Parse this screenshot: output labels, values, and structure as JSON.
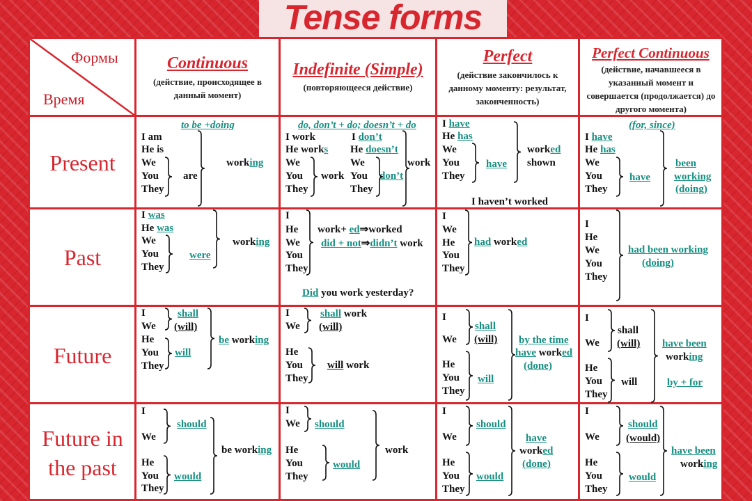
{
  "title": "Tense forms",
  "corner": {
    "forms": "Формы",
    "time": "Время"
  },
  "columns": [
    {
      "title": "Continuous",
      "subtitle": "(действие, происходящее в данный момент)"
    },
    {
      "title": "Indefinite (Simple)",
      "subtitle": "(повторяющееся действие)"
    },
    {
      "title": "Perfect",
      "subtitle": "(действие закончилось к данному моменту: результат, законченность)"
    },
    {
      "title": "Perfect Continuous",
      "subtitle": "(действие, начавшееся в указанный момент и совершается (продолжается) до другого момента)"
    }
  ],
  "rows": [
    {
      "label": "Present"
    },
    {
      "label": "Past"
    },
    {
      "label": "Future"
    },
    {
      "label": "Future in",
      "label2": "the past"
    }
  ],
  "colors": {
    "accent": "#d8262f",
    "highlight": "#178f82"
  },
  "cells": {
    "present_continuous": [
      [
        {
          "hi": "to be +doing"
        }
      ],
      [
        "I am"
      ],
      [
        "He is"
      ],
      [
        "We"
      ],
      [
        "You"
      ],
      [
        "They"
      ],
      [
        "are"
      ],
      [
        "work",
        {
          "hl": "ing"
        }
      ]
    ],
    "present_indefinite": [
      [
        {
          "hi": "do, don’t + do; doesn’t + do"
        }
      ],
      [
        "I work"
      ],
      [
        "He work",
        {
          "hl": "s"
        }
      ],
      [
        "We"
      ],
      [
        "You"
      ],
      [
        "They"
      ],
      [
        "work"
      ],
      [
        "I ",
        {
          "hl": "don’t"
        }
      ],
      [
        "He ",
        {
          "hl": "doesn’t"
        }
      ],
      [
        "We"
      ],
      [
        "You"
      ],
      [
        "They"
      ],
      [
        {
          "hl": "don’t"
        }
      ],
      [
        "work"
      ]
    ],
    "present_perfect": [
      [
        "I ",
        {
          "hl": "have"
        }
      ],
      [
        "He ",
        {
          "hl": "has"
        }
      ],
      [
        "We"
      ],
      [
        "You"
      ],
      [
        "They"
      ],
      [
        {
          "hl": "have"
        }
      ],
      [
        "work",
        {
          "hl": "ed"
        }
      ],
      [
        "shown"
      ],
      [
        "I haven’t worked"
      ]
    ],
    "present_perfect_continuous": [
      [
        {
          "hi": "(for, since)"
        }
      ],
      [
        "I ",
        {
          "hl": "have"
        }
      ],
      [
        "He ",
        {
          "hl": "has"
        }
      ],
      [
        "We"
      ],
      [
        "You"
      ],
      [
        "They"
      ],
      [
        {
          "hl": "have"
        }
      ],
      [
        {
          "hl": "been"
        }
      ],
      [
        {
          "hl": "working"
        }
      ],
      [
        {
          "hl": "(doing)"
        }
      ]
    ],
    "past_continuous": [
      [
        "I ",
        {
          "hl": "was"
        }
      ],
      [
        "He ",
        {
          "hl": "was"
        }
      ],
      [
        "We"
      ],
      [
        "You"
      ],
      [
        "They"
      ],
      [
        {
          "hl": "were"
        }
      ],
      [
        "work",
        {
          "hl": "ing"
        }
      ]
    ],
    "past_indefinite": [
      [
        "I"
      ],
      [
        "He"
      ],
      [
        "We"
      ],
      [
        "You"
      ],
      [
        "They"
      ],
      [
        "work+ ",
        {
          "hl": "ed"
        },
        "⇒worked"
      ],
      [
        {
          "hl": "did + not"
        },
        "⇒",
        {
          "hl": "didn’t"
        },
        " work"
      ],
      [
        {
          "hl": "Did"
        },
        " you work yesterday?"
      ]
    ],
    "past_perfect": [
      [
        "I"
      ],
      [
        "We"
      ],
      [
        "He"
      ],
      [
        "You"
      ],
      [
        "They"
      ],
      [
        {
          "hl": "had"
        },
        " work",
        {
          "hl": "ed"
        }
      ]
    ],
    "past_perfect_continuous": [
      [
        "I"
      ],
      [
        "He"
      ],
      [
        "We"
      ],
      [
        "You"
      ],
      [
        "They"
      ],
      [
        {
          "hl": "had been working"
        }
      ],
      [
        {
          "hl": "(doing)"
        }
      ]
    ],
    "future_continuous": [
      [
        "I"
      ],
      [
        "We"
      ],
      [
        "He"
      ],
      [
        "You"
      ],
      [
        "They"
      ],
      [
        {
          "hl": "shall"
        }
      ],
      [
        {
          "u": "(will)"
        }
      ],
      [
        {
          "hl": "will"
        }
      ],
      [
        {
          "hl": "be"
        },
        " work",
        {
          "hl": "ing"
        }
      ]
    ],
    "future_indefinite": [
      [
        "I"
      ],
      [
        "We"
      ],
      [
        {
          "hl": "shall"
        },
        " work"
      ],
      [
        {
          "u": "(will)"
        }
      ],
      [
        "He"
      ],
      [
        "You"
      ],
      [
        "They"
      ],
      [
        {
          "u": "will"
        },
        " work"
      ]
    ],
    "future_perfect": [
      [
        "I"
      ],
      [
        "We"
      ],
      [
        {
          "hl": "shall"
        }
      ],
      [
        {
          "u": "(will)"
        }
      ],
      [
        "He"
      ],
      [
        "You"
      ],
      [
        "They"
      ],
      [
        {
          "hl": "will"
        }
      ],
      [
        {
          "hl": "by the time"
        }
      ],
      [
        {
          "hl": "have"
        },
        " work",
        {
          "hl": "ed"
        }
      ],
      [
        {
          "hl": "(done)"
        }
      ]
    ],
    "future_perfect_continuous": [
      [
        "I"
      ],
      [
        "We"
      ],
      [
        "shall"
      ],
      [
        {
          "u": "(will)"
        }
      ],
      [
        "He"
      ],
      [
        "You"
      ],
      [
        "They"
      ],
      [
        "will"
      ],
      [
        {
          "hl": "have been"
        }
      ],
      [
        "work",
        {
          "hl": "ing"
        }
      ],
      [
        {
          "hl": "by + for"
        }
      ]
    ],
    "fip_continuous": [
      [
        "I"
      ],
      [
        "We"
      ],
      [
        {
          "hl": "should"
        }
      ],
      [
        "He"
      ],
      [
        "You"
      ],
      [
        "They"
      ],
      [
        {
          "hl": "would"
        }
      ],
      [
        "be work",
        {
          "hl": "ing"
        }
      ]
    ],
    "fip_indefinite": [
      [
        "I"
      ],
      [
        "We"
      ],
      [
        {
          "hl": "should"
        }
      ],
      [
        "He"
      ],
      [
        "You"
      ],
      [
        "They"
      ],
      [
        {
          "hl": "would"
        }
      ],
      [
        "work"
      ]
    ],
    "fip_perfect": [
      [
        "I"
      ],
      [
        "We"
      ],
      [
        {
          "hl": "should"
        }
      ],
      [
        "He"
      ],
      [
        "You"
      ],
      [
        "They"
      ],
      [
        {
          "hl": "would"
        }
      ],
      [
        {
          "hl": "have"
        }
      ],
      [
        "work",
        {
          "hl": "ed"
        }
      ],
      [
        {
          "hl": "(done)"
        }
      ]
    ],
    "fip_perfect_continuous": [
      [
        "I"
      ],
      [
        "We"
      ],
      [
        {
          "hl": "should"
        }
      ],
      [
        {
          "u": "(would)"
        }
      ],
      [
        "He"
      ],
      [
        "You"
      ],
      [
        "They"
      ],
      [
        {
          "hl": "would"
        }
      ],
      [
        {
          "hl": "have been"
        }
      ],
      [
        "work",
        {
          "hl": "ing"
        }
      ]
    ]
  }
}
